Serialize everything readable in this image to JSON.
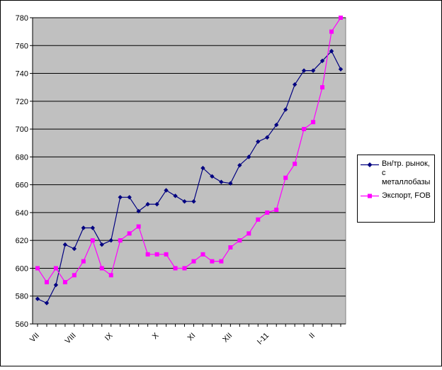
{
  "chart_data": {
    "type": "line",
    "title": "",
    "xlabel": "",
    "ylabel": "",
    "ylim": [
      560,
      780
    ],
    "y_ticks": [
      560,
      580,
      600,
      620,
      640,
      660,
      680,
      700,
      720,
      740,
      760,
      780
    ],
    "x_tick_labels": [
      {
        "label": "VII",
        "index": 0
      },
      {
        "label": "VIII",
        "index": 4
      },
      {
        "label": "IX",
        "index": 8
      },
      {
        "label": "X",
        "index": 13
      },
      {
        "label": "XI",
        "index": 17
      },
      {
        "label": "XII",
        "index": 21
      },
      {
        "label": "I-11",
        "index": 25
      },
      {
        "label": "II",
        "index": 30
      }
    ],
    "grid": "horizontal",
    "legend_position": "right",
    "plot_background": "#c0c0c0",
    "series": [
      {
        "name": "Вн/тр. рынок, с металлобазы",
        "color": "#000080",
        "marker": "diamond",
        "values": [
          578,
          575,
          588,
          617,
          614,
          629,
          629,
          617,
          620,
          651,
          651,
          641,
          646,
          646,
          656,
          652,
          648,
          648,
          672,
          666,
          662,
          661,
          674,
          680,
          691,
          694,
          703,
          714,
          732,
          742,
          742,
          749,
          756,
          743
        ]
      },
      {
        "name": "Экспорт, FOB",
        "color": "#ff00ff",
        "marker": "square",
        "values": [
          600,
          590,
          600,
          590,
          595,
          605,
          620,
          600,
          595,
          620,
          625,
          630,
          610,
          610,
          610,
          600,
          600,
          605,
          610,
          605,
          605,
          615,
          620,
          625,
          635,
          640,
          642,
          665,
          675,
          700,
          705,
          730,
          770,
          780
        ]
      }
    ]
  }
}
